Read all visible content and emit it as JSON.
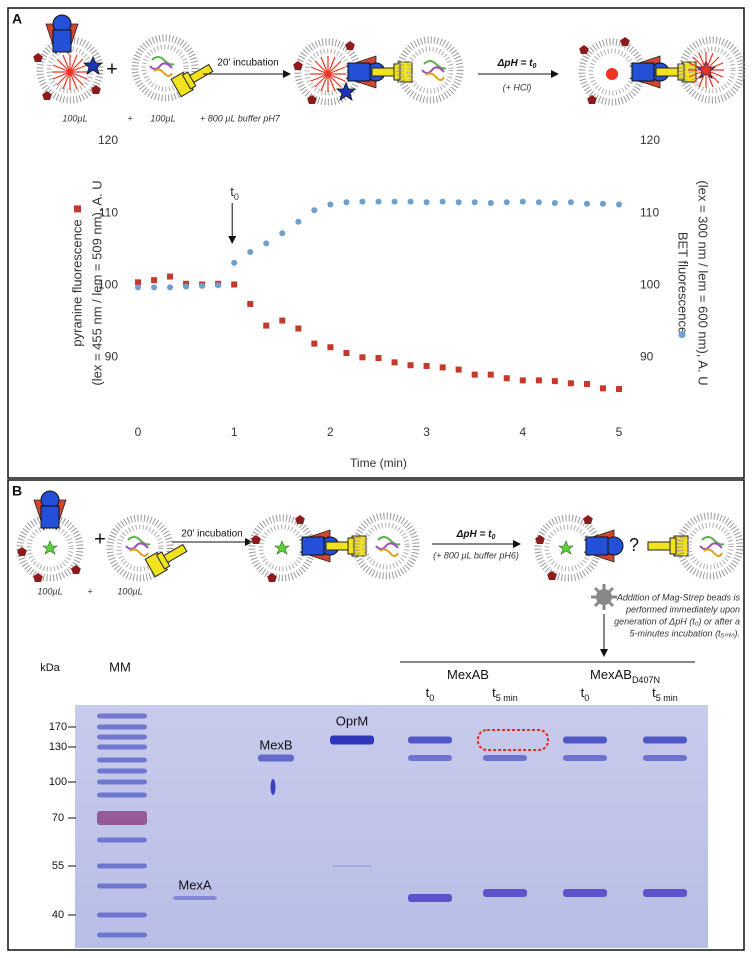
{
  "panel_a": {
    "label": "A",
    "scheme": {
      "volume_1": "100µL",
      "plus_1": "+",
      "volume_2": "100µL",
      "plus_2": "+ 800 µL buffer pH7",
      "plus_big": "+",
      "step_1": "20' incubation",
      "step_2": {
        "base": "ΔpH = t",
        "sub": "0"
      },
      "step_2_note": "(+ HCl)"
    }
  },
  "chart_data": {
    "type": "scatter",
    "ylabel": [
      "pyranine fluorescence",
      "(lex = 455 nm / lem = 509 nm), A. U"
    ],
    "y2label": [
      "BET fluorescence",
      "(lex = 300 nm / lem = 600 nm), A. U"
    ],
    "xlabel": "Time (min)",
    "annotation": {
      "base": "t",
      "sub": "0"
    },
    "x": [
      0,
      0.167,
      0.333,
      0.5,
      0.667,
      0.833,
      1,
      1.167,
      1.333,
      1.5,
      1.667,
      1.833,
      2,
      2.167,
      2.333,
      2.5,
      2.667,
      2.833,
      3,
      3.167,
      3.333,
      3.5,
      3.667,
      3.833,
      4,
      4.167,
      4.333,
      4.5,
      4.667,
      4.833,
      5
    ],
    "series": [
      {
        "color": "#c4392b",
        "marker": "square",
        "values": [
          100.4,
          100.7,
          101.2,
          100.2,
          100.1,
          100.2,
          100.1,
          97.4,
          94.4,
          95.1,
          94.0,
          91.9,
          91.4,
          90.6,
          90.0,
          89.9,
          89.3,
          88.9,
          88.8,
          88.6,
          88.3,
          87.6,
          87.6,
          87.1,
          86.8,
          86.8,
          86.7,
          86.4,
          86.3,
          85.7,
          85.6
        ]
      },
      {
        "color": "#6f9fcd",
        "marker": "circle",
        "axis": "y2",
        "values": [
          99.7,
          99.7,
          99.7,
          99.8,
          99.9,
          100.0,
          103.1,
          104.6,
          105.8,
          107.2,
          108.8,
          110.4,
          111.2,
          111.5,
          111.6,
          111.6,
          111.6,
          111.6,
          111.5,
          111.6,
          111.5,
          111.5,
          111.4,
          111.5,
          111.6,
          111.5,
          111.4,
          111.5,
          111.3,
          111.3,
          111.2
        ]
      }
    ],
    "xlim": [
      0,
      5
    ],
    "xticks": [
      0,
      1,
      2,
      3,
      4,
      5
    ],
    "ylim": [
      82,
      120
    ],
    "yticks": [
      90,
      100,
      110,
      120
    ],
    "y2lim": [
      82,
      120
    ],
    "y2ticks": [
      90,
      100,
      110,
      120
    ],
    "grid": false
  },
  "panel_b": {
    "label": "B",
    "scheme": {
      "volume_1": "100µL",
      "plus_1": "+",
      "volume_2": "100µL",
      "plus_big": "+",
      "step_1": "20' incubation",
      "step_2": {
        "base": "ΔpH = t",
        "sub": "0"
      },
      "step_2_note": "(+ 800 µL buffer pH6)",
      "question": "?",
      "note": [
        "Addition of Mag-Strep beads is",
        "performed immediately upon",
        "generation of ΔpH (t₀) or after a",
        "5-minutes incubation (t₅ₘᵢₙ)."
      ]
    },
    "gel": {
      "kda_label": "kDa",
      "ladder_label": "MM",
      "markers": [
        170,
        130,
        100,
        70,
        55,
        40
      ],
      "lanes": [
        "MexA",
        "MexB",
        "OprM"
      ],
      "groups": [
        {
          "base": "MexAB",
          "sub": ""
        },
        {
          "base": "MexAB",
          "sub": "D407N"
        }
      ],
      "times": [
        {
          "base": "t",
          "sub": "0"
        },
        {
          "base": "t",
          "sub": "5 min"
        },
        {
          "base": "t",
          "sub": "0"
        },
        {
          "base": "t",
          "sub": "5 min"
        }
      ]
    }
  }
}
